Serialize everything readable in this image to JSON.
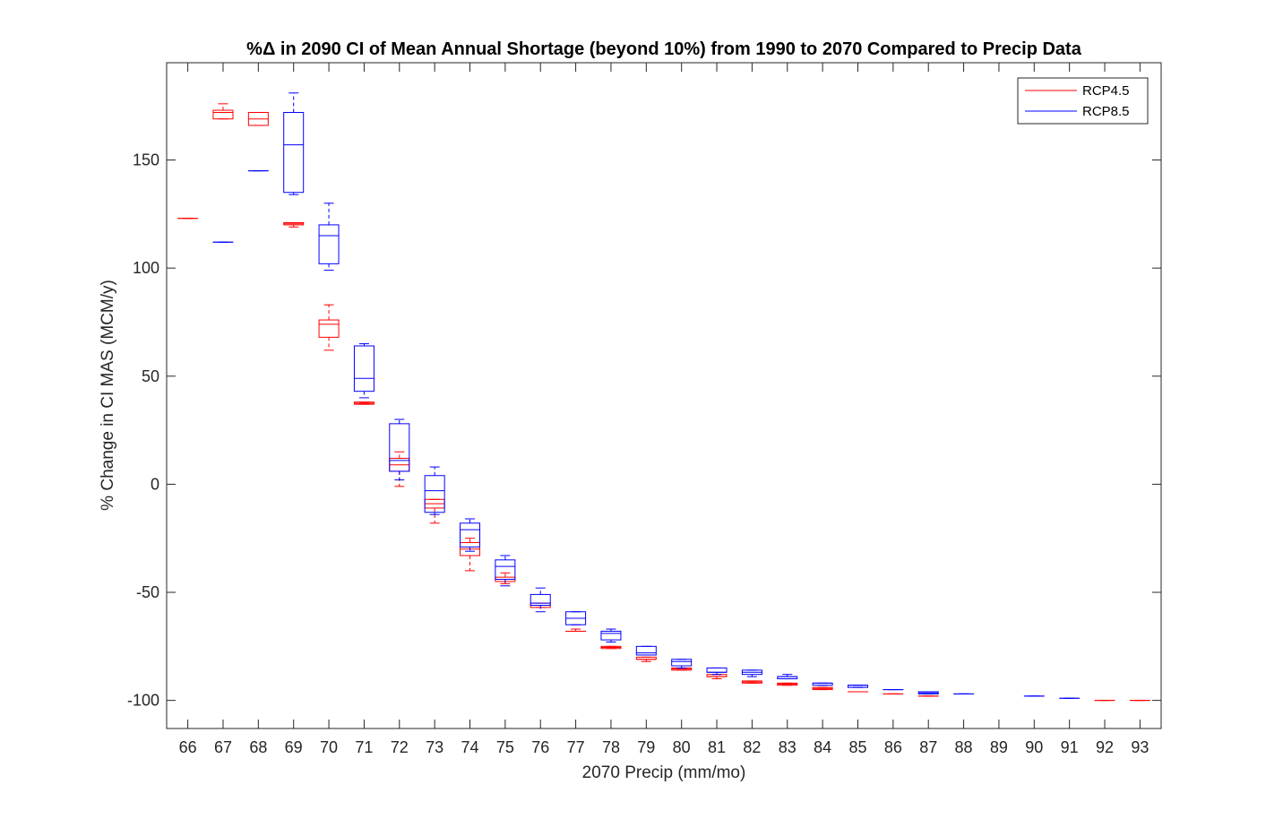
{
  "chart_data": {
    "type": "boxplot",
    "title": "%Δ in 2090 CI of Mean Annual Shortage (beyond 10%) from 1990 to 2070 Compared to Precip Data",
    "xlabel": "2070 Precip (mm/mo)",
    "ylabel": "% Change in CI MAS (MCM/y)",
    "ylim": [
      -113,
      195
    ],
    "yticks": [
      -100,
      -50,
      0,
      50,
      100,
      150
    ],
    "categories": [
      66,
      67,
      68,
      69,
      70,
      71,
      72,
      73,
      74,
      75,
      76,
      77,
      78,
      79,
      80,
      81,
      82,
      83,
      84,
      85,
      86,
      87,
      88,
      89,
      90,
      91,
      92,
      93
    ],
    "grid": false,
    "legend_position": "top-right",
    "series": [
      {
        "name": "RCP4.5",
        "color": "#ff0000",
        "boxes": [
          {
            "x": 66,
            "min": 123,
            "q1": 123,
            "median": 123,
            "q3": 123,
            "max": 123
          },
          {
            "x": 67,
            "min": 169,
            "q1": 169,
            "median": 172,
            "q3": 173,
            "max": 176
          },
          {
            "x": 68,
            "min": 166,
            "q1": 166,
            "median": 169,
            "q3": 172,
            "max": 172
          },
          {
            "x": 69,
            "min": 119,
            "q1": 120,
            "median": 120.5,
            "q3": 121,
            "max": 121
          },
          {
            "x": 70,
            "min": 62,
            "q1": 68,
            "median": 74,
            "q3": 76,
            "max": 83
          },
          {
            "x": 71,
            "min": 37,
            "q1": 37,
            "median": 37.5,
            "q3": 38,
            "max": 38
          },
          {
            "x": 72,
            "min": -1,
            "q1": 6,
            "median": 9,
            "q3": 12,
            "max": 15
          },
          {
            "x": 73,
            "min": -18,
            "q1": -11,
            "median": -9,
            "q3": -7,
            "max": -7
          },
          {
            "x": 74,
            "min": -40,
            "q1": -33,
            "median": -30,
            "q3": -27,
            "max": -25
          },
          {
            "x": 75,
            "min": -46,
            "q1": -45,
            "median": -44,
            "q3": -43,
            "max": -41
          },
          {
            "x": 76,
            "min": -57,
            "q1": -57,
            "median": -56,
            "q3": -55,
            "max": -55
          },
          {
            "x": 77,
            "min": -68,
            "q1": -68,
            "median": -68,
            "q3": -68,
            "max": -67
          },
          {
            "x": 78,
            "min": -76,
            "q1": -76,
            "median": -75.5,
            "q3": -75,
            "max": -75
          },
          {
            "x": 79,
            "min": -82,
            "q1": -81,
            "median": -81,
            "q3": -80,
            "max": -80
          },
          {
            "x": 80,
            "min": -86,
            "q1": -86,
            "median": -85.5,
            "q3": -85,
            "max": -85
          },
          {
            "x": 81,
            "min": -90,
            "q1": -89,
            "median": -89,
            "q3": -88,
            "max": -88
          },
          {
            "x": 82,
            "min": -92,
            "q1": -92,
            "median": -91.5,
            "q3": -91,
            "max": -91
          },
          {
            "x": 83,
            "min": -93,
            "q1": -93,
            "median": -92.5,
            "q3": -92,
            "max": -92
          },
          {
            "x": 84,
            "min": -95,
            "q1": -95,
            "median": -94.5,
            "q3": -94,
            "max": -94
          },
          {
            "x": 85,
            "min": -96,
            "q1": -96,
            "median": -96,
            "q3": -96,
            "max": -96
          },
          {
            "x": 86,
            "min": -97,
            "q1": -97,
            "median": -97,
            "q3": -97,
            "max": -97
          },
          {
            "x": 87,
            "min": -98,
            "q1": -98,
            "median": -98,
            "q3": -98,
            "max": -98
          },
          {
            "x": 92,
            "min": -100,
            "q1": -100,
            "median": -100,
            "q3": -100,
            "max": -100
          },
          {
            "x": 93,
            "min": -100,
            "q1": -100,
            "median": -100,
            "q3": -100,
            "max": -100
          }
        ]
      },
      {
        "name": "RCP8.5",
        "color": "#0000ff",
        "boxes": [
          {
            "x": 67,
            "min": 112,
            "q1": 112,
            "median": 112,
            "q3": 112,
            "max": 112
          },
          {
            "x": 68,
            "min": 145,
            "q1": 145,
            "median": 145,
            "q3": 145,
            "max": 145
          },
          {
            "x": 69,
            "min": 134,
            "q1": 135,
            "median": 157,
            "q3": 172,
            "max": 181
          },
          {
            "x": 70,
            "min": 99,
            "q1": 102,
            "median": 115,
            "q3": 120,
            "max": 130
          },
          {
            "x": 71,
            "min": 40,
            "q1": 43,
            "median": 49,
            "q3": 64,
            "max": 65
          },
          {
            "x": 72,
            "min": 2,
            "q1": 6,
            "median": 11,
            "q3": 28,
            "max": 30
          },
          {
            "x": 73,
            "min": -14,
            "q1": -13,
            "median": -3,
            "q3": 4,
            "max": 8
          },
          {
            "x": 74,
            "min": -31,
            "q1": -29,
            "median": -21,
            "q3": -18,
            "max": -16
          },
          {
            "x": 75,
            "min": -47,
            "q1": -44,
            "median": -38,
            "q3": -35,
            "max": -33
          },
          {
            "x": 76,
            "min": -59,
            "q1": -56,
            "median": -55,
            "q3": -51,
            "max": -48
          },
          {
            "x": 77,
            "min": -65,
            "q1": -65,
            "median": -62,
            "q3": -59,
            "max": -59
          },
          {
            "x": 78,
            "min": -73,
            "q1": -72,
            "median": -69,
            "q3": -68,
            "max": -67
          },
          {
            "x": 79,
            "min": -79,
            "q1": -79,
            "median": -78,
            "q3": -75,
            "max": -75
          },
          {
            "x": 80,
            "min": -85,
            "q1": -84,
            "median": -82,
            "q3": -81,
            "max": -81
          },
          {
            "x": 81,
            "min": -88,
            "q1": -87,
            "median": -87,
            "q3": -85,
            "max": -85
          },
          {
            "x": 82,
            "min": -89,
            "q1": -88,
            "median": -87,
            "q3": -86,
            "max": -86
          },
          {
            "x": 83,
            "min": -90,
            "q1": -90,
            "median": -89,
            "q3": -89,
            "max": -88
          },
          {
            "x": 84,
            "min": -93,
            "q1": -93,
            "median": -92,
            "q3": -92,
            "max": -92
          },
          {
            "x": 85,
            "min": -94,
            "q1": -94,
            "median": -93,
            "q3": -93,
            "max": -93
          },
          {
            "x": 86,
            "min": -95,
            "q1": -95,
            "median": -95,
            "q3": -95,
            "max": -95
          },
          {
            "x": 87,
            "min": -97,
            "q1": -97,
            "median": -96.5,
            "q3": -96,
            "max": -96
          },
          {
            "x": 88,
            "min": -97,
            "q1": -97,
            "median": -97,
            "q3": -97,
            "max": -97
          },
          {
            "x": 90,
            "min": -98,
            "q1": -98,
            "median": -98,
            "q3": -98,
            "max": -98
          },
          {
            "x": 91,
            "min": -99,
            "q1": -99,
            "median": -99,
            "q3": -99,
            "max": -99
          }
        ]
      }
    ]
  }
}
